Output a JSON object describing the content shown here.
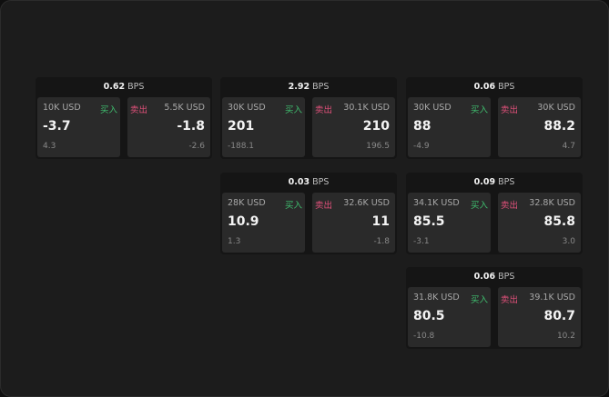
{
  "colors": {
    "buy": "#3fbf6f",
    "sell": "#e0507a",
    "background": "#1c1c1c"
  },
  "buy_label": "买入",
  "sell_label": "卖出",
  "unit": "BPS",
  "cards": [
    {
      "spread": "0.62",
      "bid_qty": "10K USD",
      "bid": "-3.7",
      "bid_chg": "4.3",
      "ask_qty": "5.5K USD",
      "ask": "-1.8",
      "ask_chg": "-2.6"
    },
    {
      "spread": "2.92",
      "bid_qty": "30K USD",
      "bid": "201",
      "bid_chg": "-188.1",
      "ask_qty": "30.1K USD",
      "ask": "210",
      "ask_chg": "196.5"
    },
    {
      "spread": "0.06",
      "bid_qty": "30K USD",
      "bid": "88",
      "bid_chg": "-4.9",
      "ask_qty": "30K USD",
      "ask": "88.2",
      "ask_chg": "4.7"
    },
    {
      "spread": "0.03",
      "bid_qty": "28K USD",
      "bid": "10.9",
      "bid_chg": "1.3",
      "ask_qty": "32.6K USD",
      "ask": "11",
      "ask_chg": "-1.8"
    },
    {
      "spread": "0.09",
      "bid_qty": "34.1K USD",
      "bid": "85.5",
      "bid_chg": "-3.1",
      "ask_qty": "32.8K USD",
      "ask": "85.8",
      "ask_chg": "3.0"
    },
    {
      "spread": "0.06",
      "bid_qty": "31.8K USD",
      "bid": "80.5",
      "bid_chg": "-10.8",
      "ask_qty": "39.1K USD",
      "ask": "80.7",
      "ask_chg": "10.2"
    }
  ]
}
